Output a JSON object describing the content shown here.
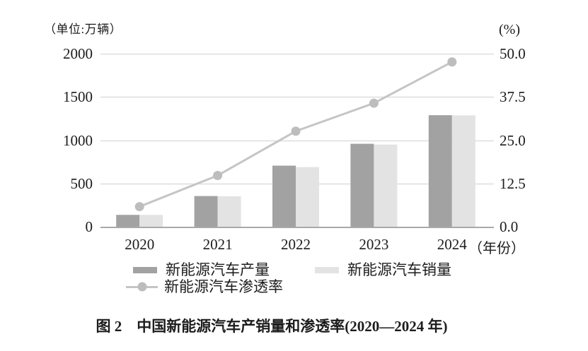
{
  "figure": {
    "unit_left": "（单位:万辆）",
    "unit_right": "(%)",
    "x_suffix": "（年份）",
    "caption": "图 2　中国新能源汽车产销量和渗透率(2020—2024 年)"
  },
  "chart_data": {
    "type": "bar",
    "title": "中国新能源汽车产销量和渗透率(2020—2024 年)",
    "categories": [
      "2020",
      "2021",
      "2022",
      "2023",
      "2024"
    ],
    "series": [
      {
        "name": "新能源汽车产量",
        "slug": "production",
        "type": "bar",
        "axis": "left",
        "color": "#a2a2a2",
        "values": [
          136.6,
          354.5,
          705.8,
          958.7,
          1288.8
        ]
      },
      {
        "name": "新能源汽车销量",
        "slug": "sales",
        "type": "bar",
        "axis": "left",
        "color": "#e3e3e3",
        "values": [
          136.7,
          352.1,
          688.7,
          949.5,
          1286.6
        ]
      },
      {
        "name": "新能源汽车渗透率",
        "slug": "penetration",
        "type": "line",
        "axis": "right",
        "color": "#c5c5c5",
        "marker_color": "#bdbdbd",
        "values": [
          5.8,
          14.8,
          27.6,
          35.7,
          47.6
        ]
      }
    ],
    "left_axis": {
      "label": "（单位:万辆）",
      "min": 0,
      "max": 2000,
      "ticks": [
        0,
        500,
        1000,
        1500,
        2000
      ],
      "tick_labels": [
        "0",
        "500",
        "1000",
        "1500",
        "2000"
      ]
    },
    "right_axis": {
      "label": "(%)",
      "min": 0,
      "max": 50,
      "ticks": [
        0,
        12.5,
        25,
        37.5,
        50
      ],
      "tick_labels": [
        "0.0",
        "12.5",
        "25.0",
        "37.5",
        "50.0"
      ]
    },
    "x_axis": {
      "label": "（年份）"
    },
    "grid": true,
    "legend_position": "bottom",
    "colors": {
      "grid": "#d8d8d8",
      "axis_line": "#a9a9a9",
      "text": "#1c1c1c"
    }
  }
}
